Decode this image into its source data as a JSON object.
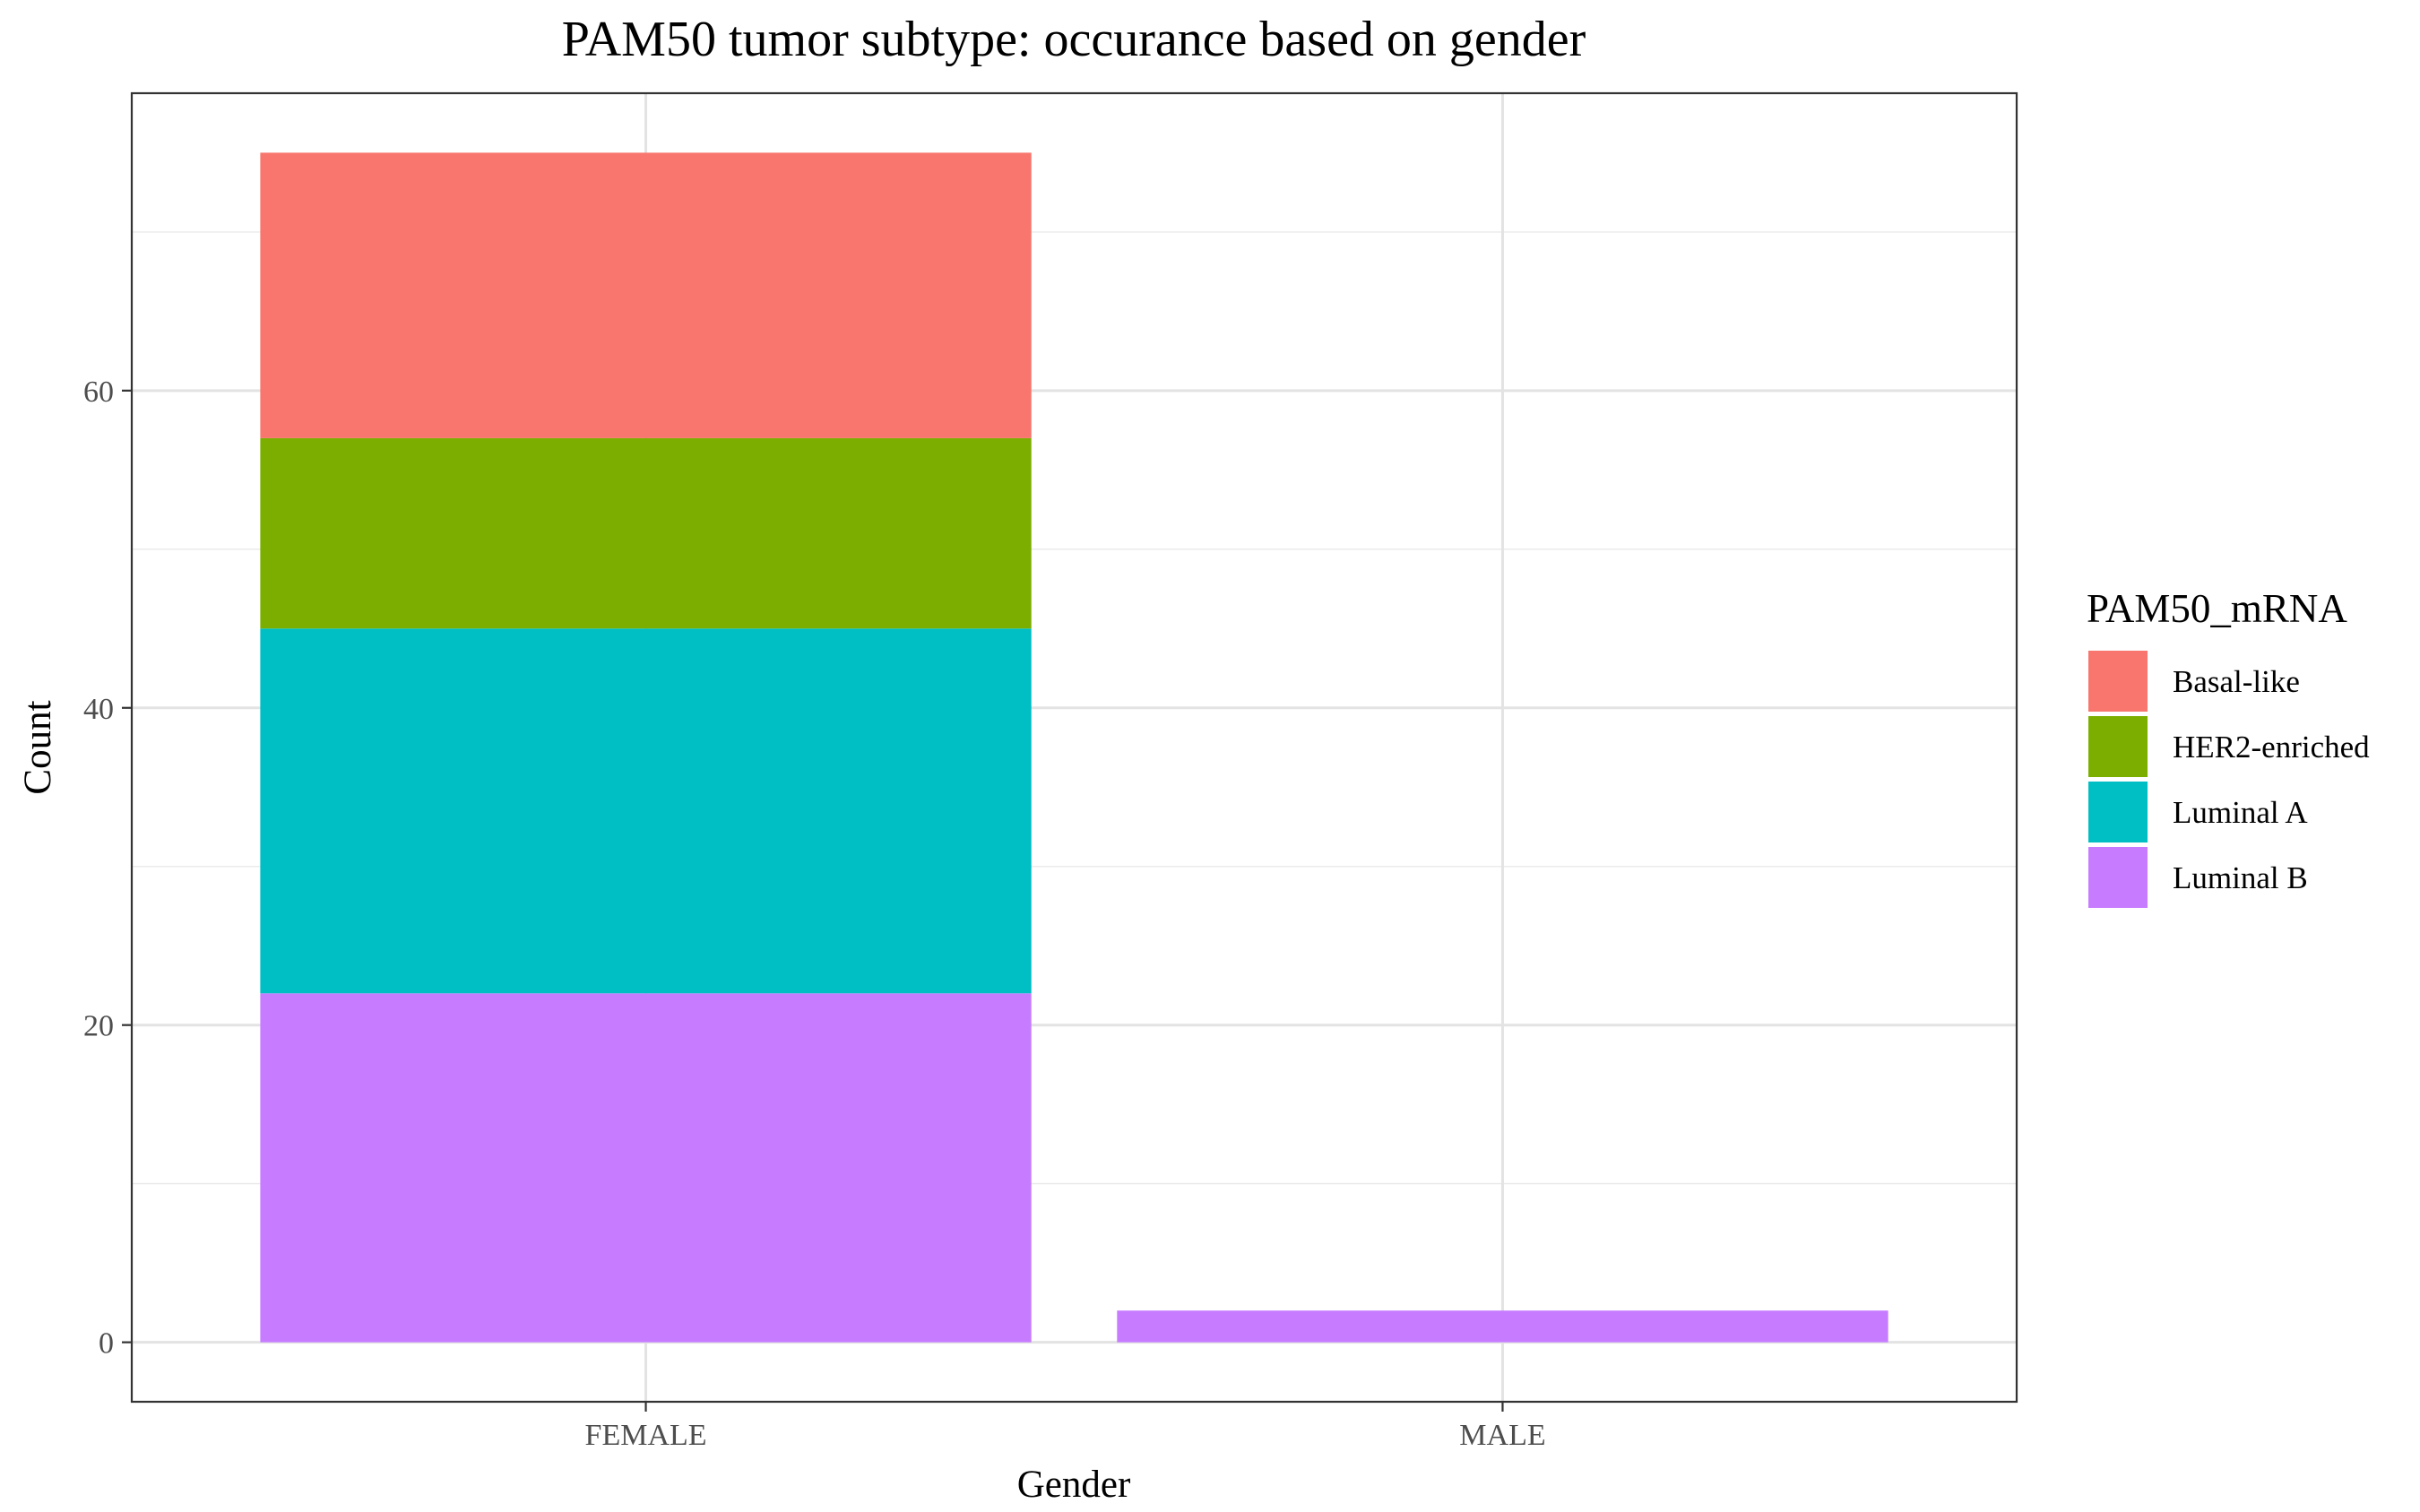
{
  "chart_data": {
    "type": "bar",
    "stacked": true,
    "title": "PAM50 tumor subtype: occurance based on gender",
    "xlabel": "Gender",
    "ylabel": "Count",
    "categories": [
      "FEMALE",
      "MALE"
    ],
    "series": [
      {
        "name": "Basal-like",
        "color": "#F8766D",
        "values": [
          18,
          0
        ]
      },
      {
        "name": "HER2-enriched",
        "color": "#7CAE00",
        "values": [
          12,
          0
        ]
      },
      {
        "name": "Luminal A",
        "color": "#00BFC4",
        "values": [
          23,
          0
        ]
      },
      {
        "name": "Luminal B",
        "color": "#C77CFF",
        "values": [
          22,
          2
        ]
      }
    ],
    "stack_order_bottom_to_top": [
      "Luminal B",
      "Luminal A",
      "HER2-enriched",
      "Basal-like"
    ],
    "ylim": [
      -3.75,
      78.75
    ],
    "yticks": [
      0,
      20,
      40,
      60
    ],
    "ytick_labels": [
      "0",
      "20",
      "40",
      "60"
    ],
    "grid": true,
    "legend": {
      "title": "PAM50_mRNA",
      "position": "right"
    }
  }
}
